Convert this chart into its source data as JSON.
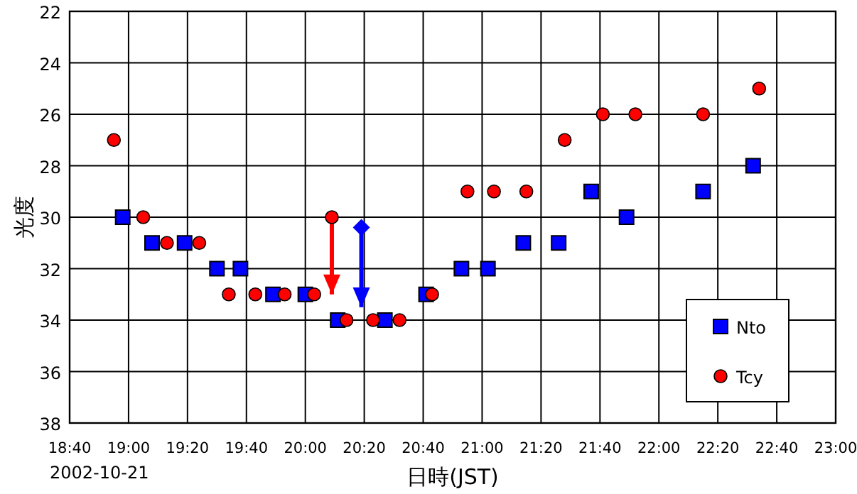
{
  "chart_data": {
    "type": "scatter",
    "xlabel": "日時(JST)",
    "ylabel": "光度",
    "annotations": [
      "2002-10-21"
    ],
    "xlim": [
      18.6667,
      23
    ],
    "xticks": [
      {
        "value": 18.6667,
        "label": "18:40"
      },
      {
        "value": 19,
        "label": "19:00"
      },
      {
        "value": 19.3333,
        "label": "19:20"
      },
      {
        "value": 19.6667,
        "label": "19:40"
      },
      {
        "value": 20,
        "label": "20:00"
      },
      {
        "value": 20.3333,
        "label": "20:20"
      },
      {
        "value": 20.6667,
        "label": "20:40"
      },
      {
        "value": 21,
        "label": "21:00"
      },
      {
        "value": 21.3333,
        "label": "21:20"
      },
      {
        "value": 21.6667,
        "label": "21:40"
      },
      {
        "value": 22,
        "label": "22:00"
      },
      {
        "value": 22.3333,
        "label": "22:20"
      },
      {
        "value": 22.6667,
        "label": "22:40"
      },
      {
        "value": 23,
        "label": "23:00"
      }
    ],
    "ylim": [
      38,
      22
    ],
    "yticks": [
      22,
      24,
      26,
      28,
      30,
      32,
      34,
      36,
      38
    ],
    "grid": true,
    "legend": "bottom right",
    "series": [
      {
        "name": "Nto",
        "color": "#0000ff",
        "marker": "square",
        "x": [
          18.967,
          19.133,
          19.317,
          19.5,
          19.633,
          19.817,
          20.0,
          20.183,
          20.45,
          20.683,
          20.883,
          21.033,
          21.233,
          21.433,
          21.617,
          21.817,
          22.25,
          22.533
        ],
        "values": [
          30,
          31,
          31,
          32,
          32,
          33,
          33,
          34,
          34,
          33,
          32,
          32,
          31,
          31,
          29,
          30,
          29,
          28
        ]
      },
      {
        "name": "Tcy",
        "color": "#ff0000",
        "marker": "circle",
        "x": [
          18.917,
          19.083,
          19.217,
          19.4,
          19.567,
          19.717,
          19.883,
          20.05,
          20.233,
          20.383,
          20.533,
          20.717,
          20.917,
          21.067,
          21.25,
          21.467,
          21.683,
          21.867,
          22.25,
          22.567
        ],
        "values": [
          27,
          30,
          31,
          31,
          33,
          33,
          33,
          33,
          34,
          34,
          34,
          33,
          29,
          29,
          29,
          27,
          26,
          26,
          26,
          25
        ]
      },
      {
        "color": "#ff0000",
        "marker": "circle",
        "x": [
          20.15
        ],
        "values": [
          30
        ],
        "errors": [
          [
            30,
            33
          ]
        ]
      },
      {
        "color": "#0000ff",
        "marker": "diamond",
        "x": [
          20.317
        ],
        "values": [
          30.4
        ],
        "errors": [
          [
            30.4,
            33.5
          ]
        ]
      }
    ]
  }
}
